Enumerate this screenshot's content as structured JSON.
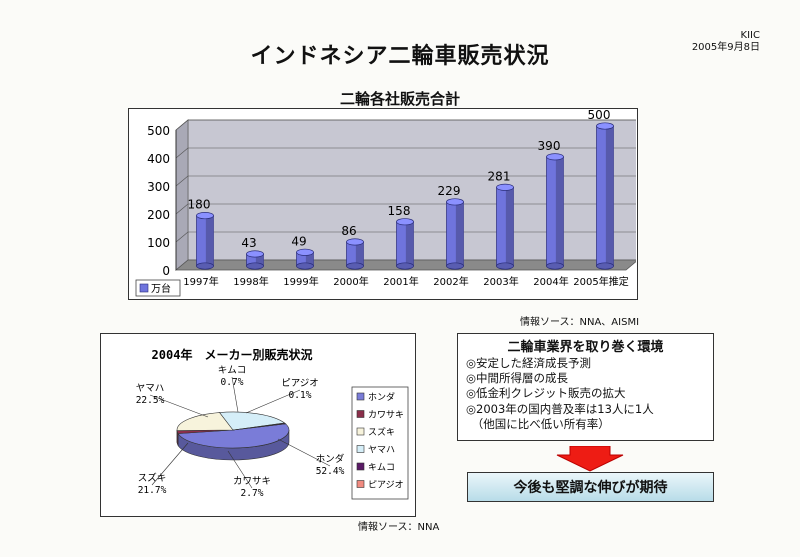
{
  "header": {
    "title": "インドネシア二輪車販売状況",
    "org": "KIIC",
    "date": "2005年9月8日"
  },
  "chart_data": [
    {
      "type": "bar",
      "title": "二輪各社販売合計",
      "categories": [
        "1997年",
        "1998年",
        "1999年",
        "2000年",
        "2001年",
        "2002年",
        "2003年",
        "2004年",
        "2005年推定"
      ],
      "series": [
        {
          "name": "万台",
          "values": [
            180,
            43,
            49,
            86,
            158,
            229,
            281,
            390,
            500
          ]
        }
      ],
      "data_labels": [
        "180",
        "43",
        "49",
        "86",
        "158",
        "229",
        "281",
        "390",
        "500"
      ],
      "yticks": [
        "0",
        "100",
        "200",
        "300",
        "400",
        "500"
      ],
      "ylim": [
        0,
        500
      ],
      "legend_position": "bottom-left",
      "grid": true,
      "colors": {
        "bar": "#6f74dd",
        "wall": "#c7c7d2",
        "floor": "#8a8a8a"
      },
      "source": "情報ソース：NNA、AISMI"
    },
    {
      "type": "pie",
      "title": "2004年　メーカー別販売状況",
      "slices": [
        {
          "name": "ホンダ",
          "value": 52.4,
          "label": "52.4%",
          "color": "#7a7cd8"
        },
        {
          "name": "カワサキ",
          "value": 2.7,
          "label": "2.7%",
          "color": "#8a2e4a"
        },
        {
          "name": "スズキ",
          "value": 21.7,
          "label": "21.7%",
          "color": "#f7f3dc"
        },
        {
          "name": "ヤマハ",
          "value": 22.5,
          "label": "22.5%",
          "color": "#d5eef8"
        },
        {
          "name": "キムコ",
          "value": 0.7,
          "label": "0.7%",
          "color": "#5a1a66"
        },
        {
          "name": "ピアジオ",
          "value": 0.1,
          "label": "0.1%",
          "color": "#f08a80"
        }
      ],
      "legend_position": "right",
      "source": "情報ソース：NNA"
    }
  ],
  "environment": {
    "title": "二輪車業界を取り巻く環境",
    "items": [
      "◎安定した経済成長予測",
      "◎中間所得層の成長",
      "◎低金利クレジット販売の拡大",
      "◎2003年の国内普及率は13人に1人",
      "　（他国に比べ低い所有率）"
    ]
  },
  "outlook": "今後も堅調な伸びが期待"
}
